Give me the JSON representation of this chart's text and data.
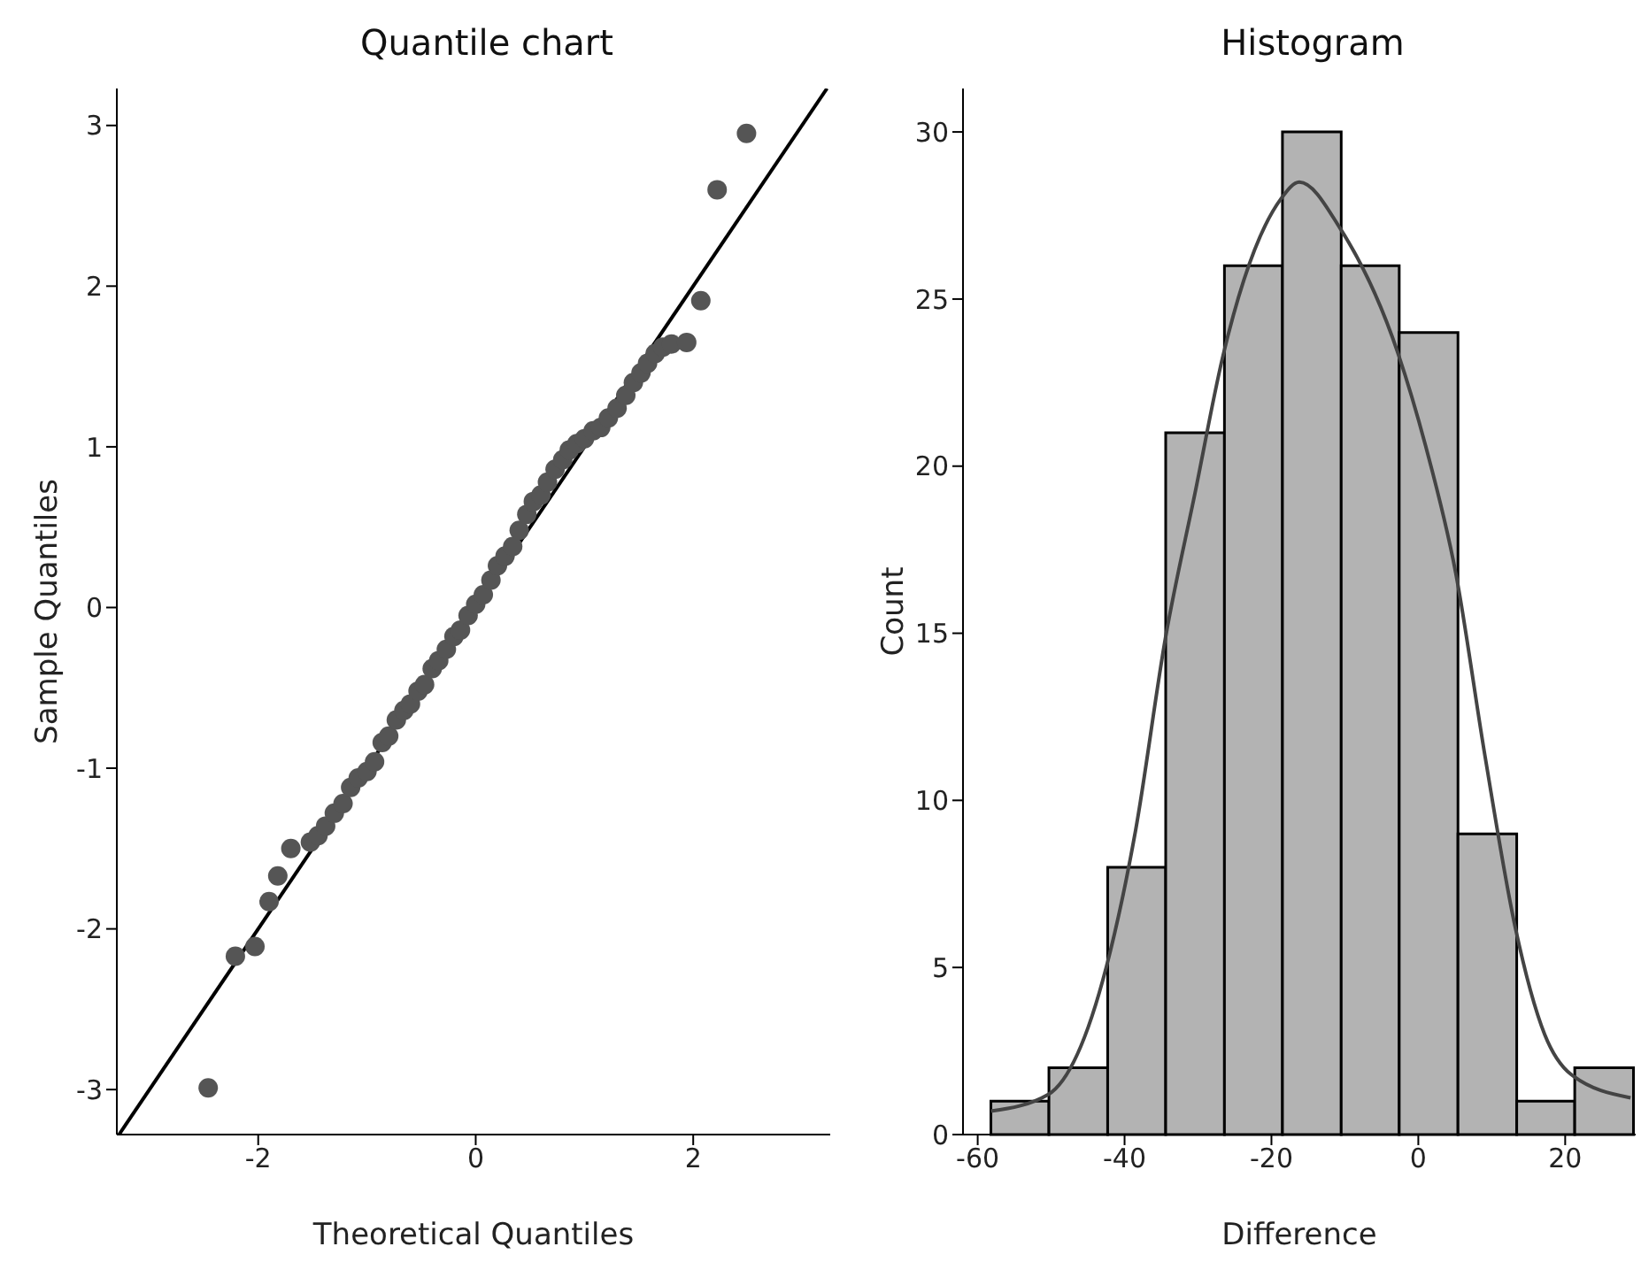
{
  "chart_data": [
    {
      "type": "scatter",
      "title": "Quantile chart",
      "xlabel": "Theoretical Quantiles",
      "ylabel": "Sample Quantiles",
      "xlim": [
        -3.3,
        3.26
      ],
      "ylim": [
        -3.28,
        3.23
      ],
      "xticks": [
        -2,
        0,
        2
      ],
      "yticks": [
        -3,
        -2,
        -1,
        0,
        1,
        2,
        3
      ],
      "grid": false,
      "series": [
        {
          "color": "#555555",
          "marker": "circle",
          "x": [
            -2.46,
            -2.21,
            -2.03,
            -1.9,
            -1.82,
            -1.7,
            -1.52,
            -1.45,
            -1.38,
            -1.3,
            -1.22,
            -1.15,
            -1.08,
            -1.0,
            -0.93,
            -0.86,
            -0.8,
            -0.73,
            -0.66,
            -0.6,
            -0.53,
            -0.47,
            -0.4,
            -0.34,
            -0.27,
            -0.2,
            -0.14,
            -0.07,
            0,
            0.07,
            0.14,
            0.2,
            0.27,
            0.34,
            0.4,
            0.47,
            0.53,
            0.6,
            0.66,
            0.73,
            0.8,
            0.86,
            0.93,
            1.0,
            1.08,
            1.15,
            1.22,
            1.3,
            1.38,
            1.45,
            1.52,
            1.58,
            1.65,
            1.72,
            1.8,
            1.94,
            2.07,
            2.22,
            2.49
          ],
          "values": [
            -2.99,
            -2.17,
            -2.11,
            -1.83,
            -1.67,
            -1.5,
            -1.46,
            -1.42,
            -1.36,
            -1.28,
            -1.22,
            -1.12,
            -1.06,
            -1.02,
            -0.96,
            -0.84,
            -0.8,
            -0.7,
            -0.64,
            -0.6,
            -0.52,
            -0.48,
            -0.38,
            -0.33,
            -0.26,
            -0.18,
            -0.14,
            -0.05,
            0.02,
            0.08,
            0.17,
            0.26,
            0.32,
            0.38,
            0.48,
            0.58,
            0.66,
            0.7,
            0.78,
            0.86,
            0.92,
            0.98,
            1.02,
            1.05,
            1.1,
            1.12,
            1.18,
            1.24,
            1.32,
            1.4,
            1.46,
            1.52,
            1.58,
            1.62,
            1.64,
            1.65,
            1.91,
            2.6,
            2.95
          ]
        },
        {
          "type": "line",
          "color": "#000000",
          "x": [
            -3.28,
            3.23
          ],
          "values": [
            -3.28,
            3.23
          ]
        }
      ]
    },
    {
      "type": "histogram",
      "title": "Histogram",
      "xlabel": "Difference",
      "ylabel": "Count",
      "xlim": [
        -62,
        29.6
      ],
      "ylim": [
        0,
        31.3
      ],
      "xticks": [
        -60,
        -40,
        -20,
        0,
        20
      ],
      "yticks": [
        0,
        5,
        10,
        15,
        20,
        25,
        30
      ],
      "grid": false,
      "series": [
        {
          "color": "#b3b3b3",
          "bins": [
            -58.2,
            -50.3,
            -42.3,
            -34.4,
            -26.4,
            -18.5,
            -10.5,
            -2.6,
            5.4,
            13.4,
            21.3,
            29.3
          ],
          "values": [
            1,
            2,
            8,
            21,
            26,
            30,
            26,
            24,
            9,
            1,
            2
          ]
        },
        {
          "type": "line",
          "color": "#444444",
          "x": [
            -58.2,
            -50.4,
            -42.5,
            -38.5,
            -34.4,
            -30.4,
            -26.6,
            -18.7,
            -16.2,
            -10.6,
            -2.8,
            1.0,
            5.1,
            9.1,
            13.2,
            17.2,
            20.8,
            28.9
          ],
          "values": [
            0.7,
            1.2,
            5.0,
            9.1,
            14.9,
            19.2,
            23.3,
            28.0,
            28.5,
            27.1,
            23.4,
            20.6,
            16.8,
            11.3,
            6.2,
            3.0,
            1.8,
            1.1
          ]
        }
      ]
    }
  ]
}
